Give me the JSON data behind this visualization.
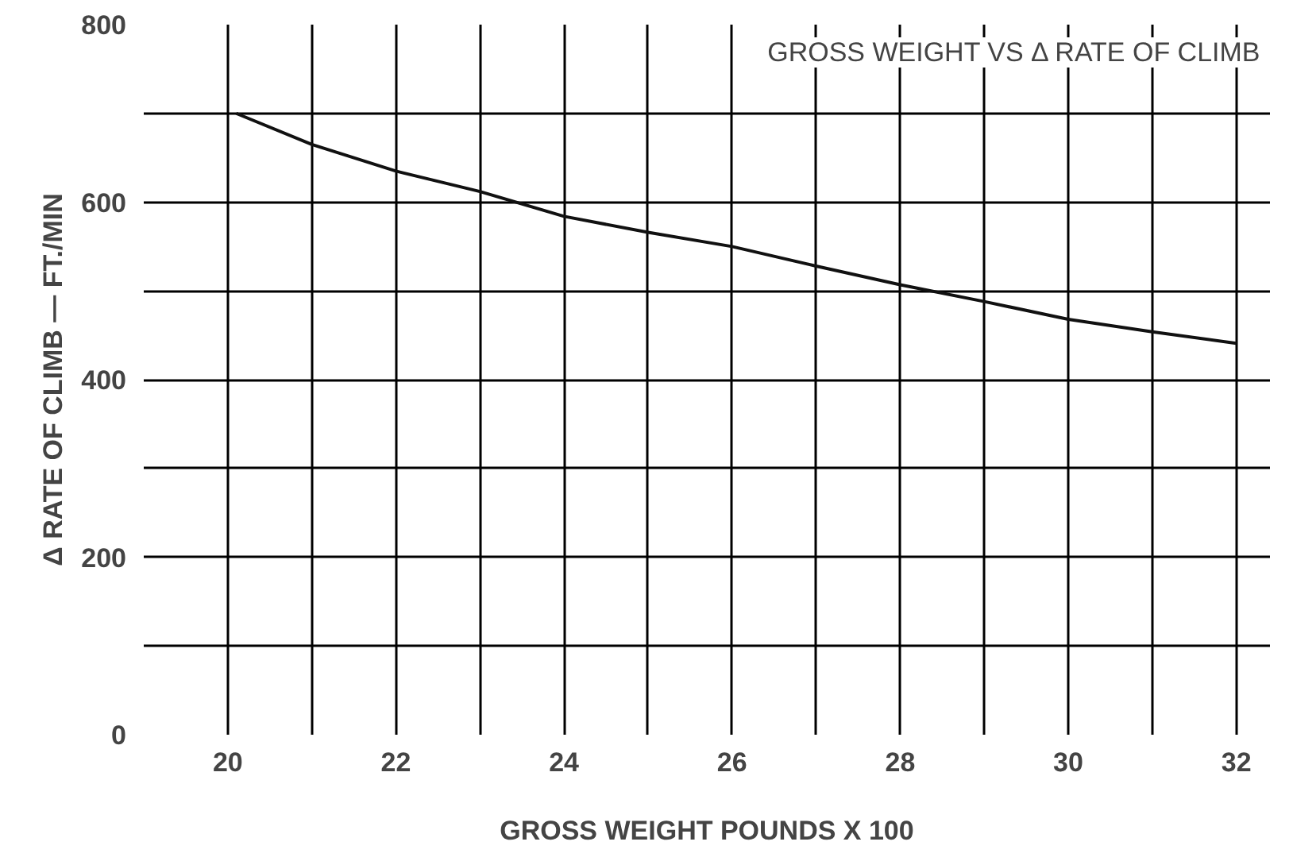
{
  "chart_data": {
    "type": "line",
    "title": "GROSS WEIGHT VS Δ RATE OF CLIMB",
    "xlabel": "GROSS WEIGHT POUNDS X 100",
    "ylabel": "Δ RATE OF CLIMB — FT./MIN",
    "x": [
      20.1,
      21,
      22,
      23,
      24,
      25,
      26,
      27,
      28,
      29,
      30,
      31,
      32
    ],
    "series": [
      {
        "color": "#111111",
        "values": [
          700,
          665,
          635,
          612,
          584,
          566,
          550,
          528,
          507,
          488,
          468,
          454,
          441
        ]
      }
    ],
    "xlim": [
      19,
      32.4
    ],
    "ylim": [
      0,
      800
    ],
    "xticks": [
      20,
      {
        "value": 21,
        "label": null
      },
      22,
      {
        "value": 23,
        "label": null
      },
      24,
      {
        "value": 25,
        "label": null
      },
      26,
      {
        "value": 27,
        "label": null
      },
      28,
      {
        "value": 29,
        "label": null
      },
      30,
      {
        "value": 31,
        "label": null
      },
      32
    ],
    "yticks": [
      0,
      {
        "value": 100,
        "label": null
      },
      200,
      {
        "value": 300,
        "label": null
      },
      400,
      {
        "value": 500,
        "label": null
      },
      600,
      {
        "value": 700,
        "label": null
      },
      800
    ],
    "grid": true,
    "marker": "none",
    "line_style": "solid"
  }
}
